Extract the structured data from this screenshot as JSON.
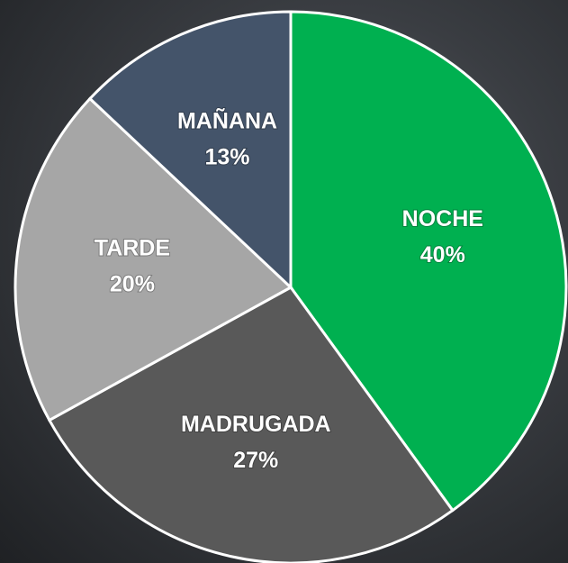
{
  "chart_data": {
    "type": "pie",
    "categories": [
      "NOCHE",
      "MADRUGADA",
      "TARDE",
      "MAÑANA"
    ],
    "values": [
      40,
      27,
      20,
      13
    ],
    "value_labels": [
      "40%",
      "27%",
      "20%",
      "13%"
    ],
    "colors": [
      "#00b050",
      "#595959",
      "#a6a6a6",
      "#44546a"
    ]
  }
}
